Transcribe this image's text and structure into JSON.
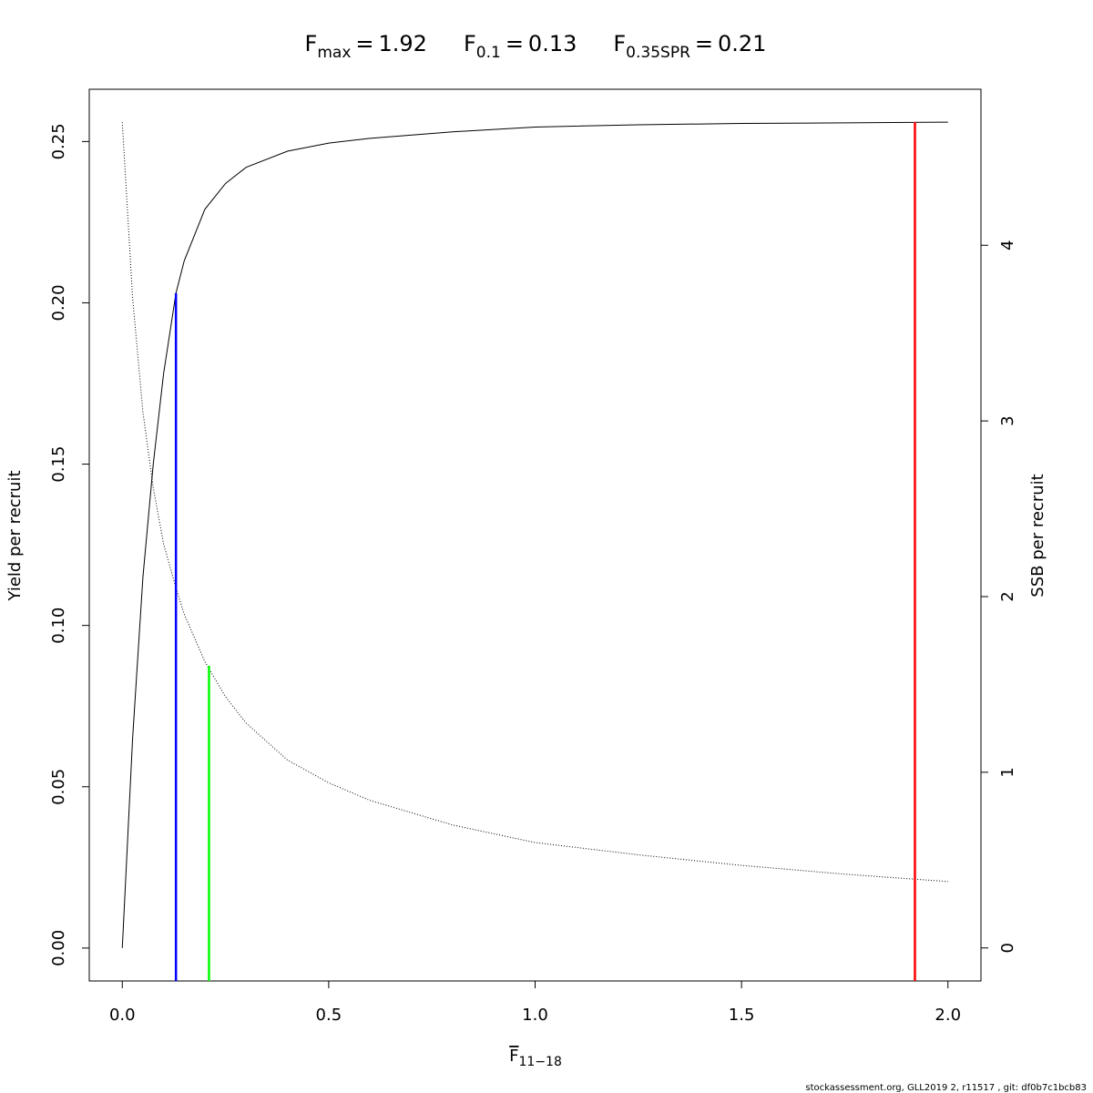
{
  "chart_data": {
    "type": "line",
    "reference_lines": [
      {
        "label": "F",
        "subscript": "max",
        "operator": "=",
        "value": 1.92,
        "color": "#ff0000",
        "ymax": 0.256
      },
      {
        "label": "F",
        "subscript": "0.1",
        "operator": "=",
        "value": 0.13,
        "color": "#0000ff",
        "ymax": 0.203
      },
      {
        "label": "F",
        "subscript": "0.35SPR",
        "operator": "=",
        "value": 0.21,
        "color": "#00ff00",
        "ymax": 0.0875
      }
    ],
    "x_label": {
      "label": "F",
      "subscript": "11−18"
    },
    "y_label": "Yield per recruit",
    "y2_label": "SSB per recruit",
    "footer": "stockassessment.org, GLL2019 2, r11517 , git: df0b7c1bcb83",
    "x": [
      0,
      0.025,
      0.05,
      0.075,
      0.1,
      0.13,
      0.15,
      0.2,
      0.25,
      0.3,
      0.4,
      0.5,
      0.6,
      0.8,
      1.0,
      1.25,
      1.5,
      1.75,
      2.0
    ],
    "series": [
      {
        "name": "Yield per recruit",
        "color": "#000000",
        "style": "solid",
        "values": [
          0,
          0.065,
          0.115,
          0.15,
          0.178,
          0.203,
          0.213,
          0.229,
          0.237,
          0.242,
          0.247,
          0.2495,
          0.251,
          0.253,
          0.2545,
          0.2552,
          0.2556,
          0.2558,
          0.256
        ]
      },
      {
        "name": "SSB per recruit",
        "color": "#000000",
        "style": "dotted",
        "axis": "y2",
        "values": [
          4.7,
          3.7,
          3.05,
          2.62,
          2.3,
          2.05,
          1.9,
          1.63,
          1.43,
          1.28,
          1.07,
          0.94,
          0.84,
          0.7,
          0.6,
          0.53,
          0.47,
          0.42,
          0.378
        ]
      }
    ],
    "xlim": [
      -0.08,
      2.08
    ],
    "xticks": [
      {
        "value": 0,
        "label": "0.0"
      },
      {
        "value": 0.5,
        "label": "0.5"
      },
      {
        "value": 1,
        "label": "1.0"
      },
      {
        "value": 1.5,
        "label": "1.5"
      },
      {
        "value": 2,
        "label": "2.0"
      }
    ],
    "ylim": [
      -0.0102,
      0.2662
    ],
    "yticks": [
      {
        "value": 0,
        "label": "0.00"
      },
      {
        "value": 0.05,
        "label": "0.05"
      },
      {
        "value": 0.1,
        "label": "0.10"
      },
      {
        "value": 0.15,
        "label": "0.15"
      },
      {
        "value": 0.2,
        "label": "0.20"
      },
      {
        "value": 0.25,
        "label": "0.25"
      }
    ],
    "y2lim": [
      -0.188,
      4.888
    ],
    "y2ticks": [
      0,
      1,
      2,
      3,
      4
    ]
  }
}
